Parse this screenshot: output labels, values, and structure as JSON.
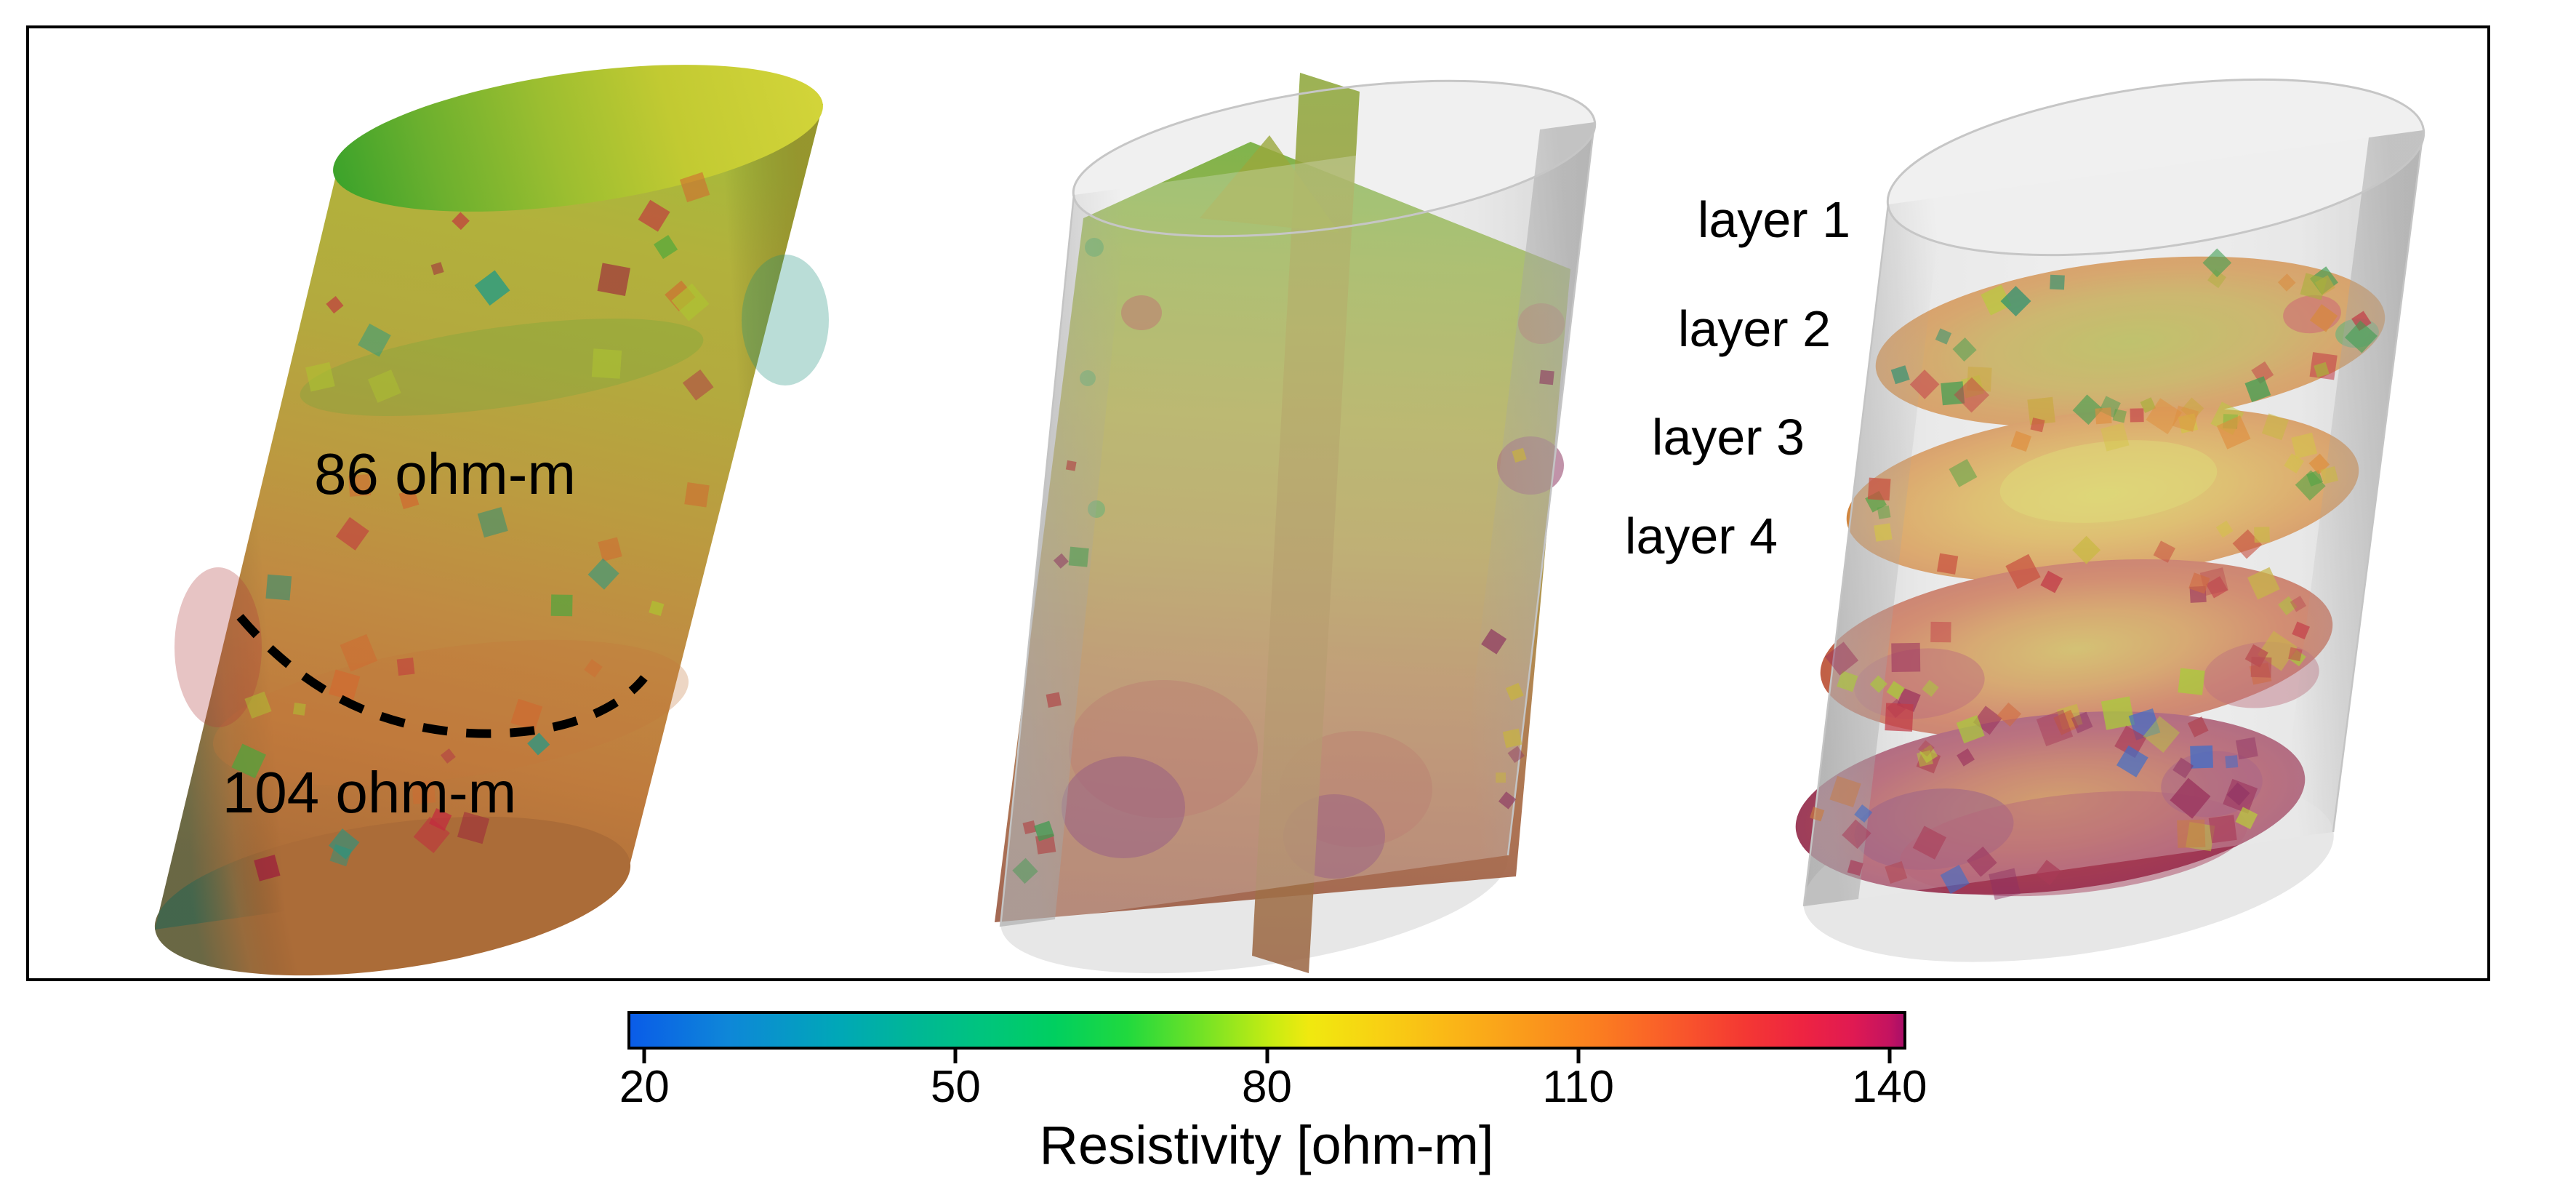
{
  "figure": {
    "left_panel": {
      "region_labels": {
        "upper": "86 ohm-m",
        "lower": "104 ohm-m"
      }
    },
    "right_panel": {
      "layer_labels": [
        "layer 1",
        "layer 2",
        "layer 3",
        "layer 4"
      ]
    },
    "colorbar": {
      "title": "Resistivity [ohm-m]"
    },
    "colors": {
      "annotation_text": "#000000",
      "frame_border": "#000000",
      "cylinder_shell_gray": "#e9e9e9",
      "colormap_low": "#0a5ce8",
      "colormap_high": "#a90e68"
    }
  },
  "chart_data": {
    "type": "heatmap",
    "title": "Resistivity [ohm-m]",
    "colorbar": {
      "label": "Resistivity [ohm-m]",
      "orientation": "horizontal",
      "tick_values": [
        20,
        50,
        80,
        110,
        140
      ],
      "range": [
        20,
        140
      ],
      "gradient_stops": [
        {
          "pos": 0.0,
          "color": "#0a5ce8"
        },
        {
          "pos": 0.077,
          "color": "#0e87d8"
        },
        {
          "pos": 0.162,
          "color": "#00a7b8"
        },
        {
          "pos": 0.219,
          "color": "#00b698"
        },
        {
          "pos": 0.276,
          "color": "#00c47e"
        },
        {
          "pos": 0.333,
          "color": "#00cf60"
        },
        {
          "pos": 0.39,
          "color": "#20d93e"
        },
        {
          "pos": 0.447,
          "color": "#70e226"
        },
        {
          "pos": 0.504,
          "color": "#c8ec12"
        },
        {
          "pos": 0.533,
          "color": "#f0e90f"
        },
        {
          "pos": 0.59,
          "color": "#f8d013"
        },
        {
          "pos": 0.647,
          "color": "#fab517"
        },
        {
          "pos": 0.704,
          "color": "#fa9a1b"
        },
        {
          "pos": 0.761,
          "color": "#fb7d20"
        },
        {
          "pos": 0.818,
          "color": "#f95b2a"
        },
        {
          "pos": 0.875,
          "color": "#f43833"
        },
        {
          "pos": 0.92,
          "color": "#ee2441"
        },
        {
          "pos": 0.96,
          "color": "#e01a52"
        },
        {
          "pos": 0.989,
          "color": "#c41360"
        },
        {
          "pos": 1.0,
          "color": "#a90e68"
        }
      ]
    },
    "annotations": [
      {
        "text": "86 ohm-m",
        "value": 86,
        "unit": "ohm-m",
        "refers_to": "cylinder section above dashed boundary"
      },
      {
        "text": "104 ohm-m",
        "value": 104,
        "unit": "ohm-m",
        "refers_to": "cylinder section below dashed boundary"
      }
    ],
    "layers": [
      "layer 1",
      "layer 2",
      "layer 3",
      "layer 4"
    ]
  }
}
